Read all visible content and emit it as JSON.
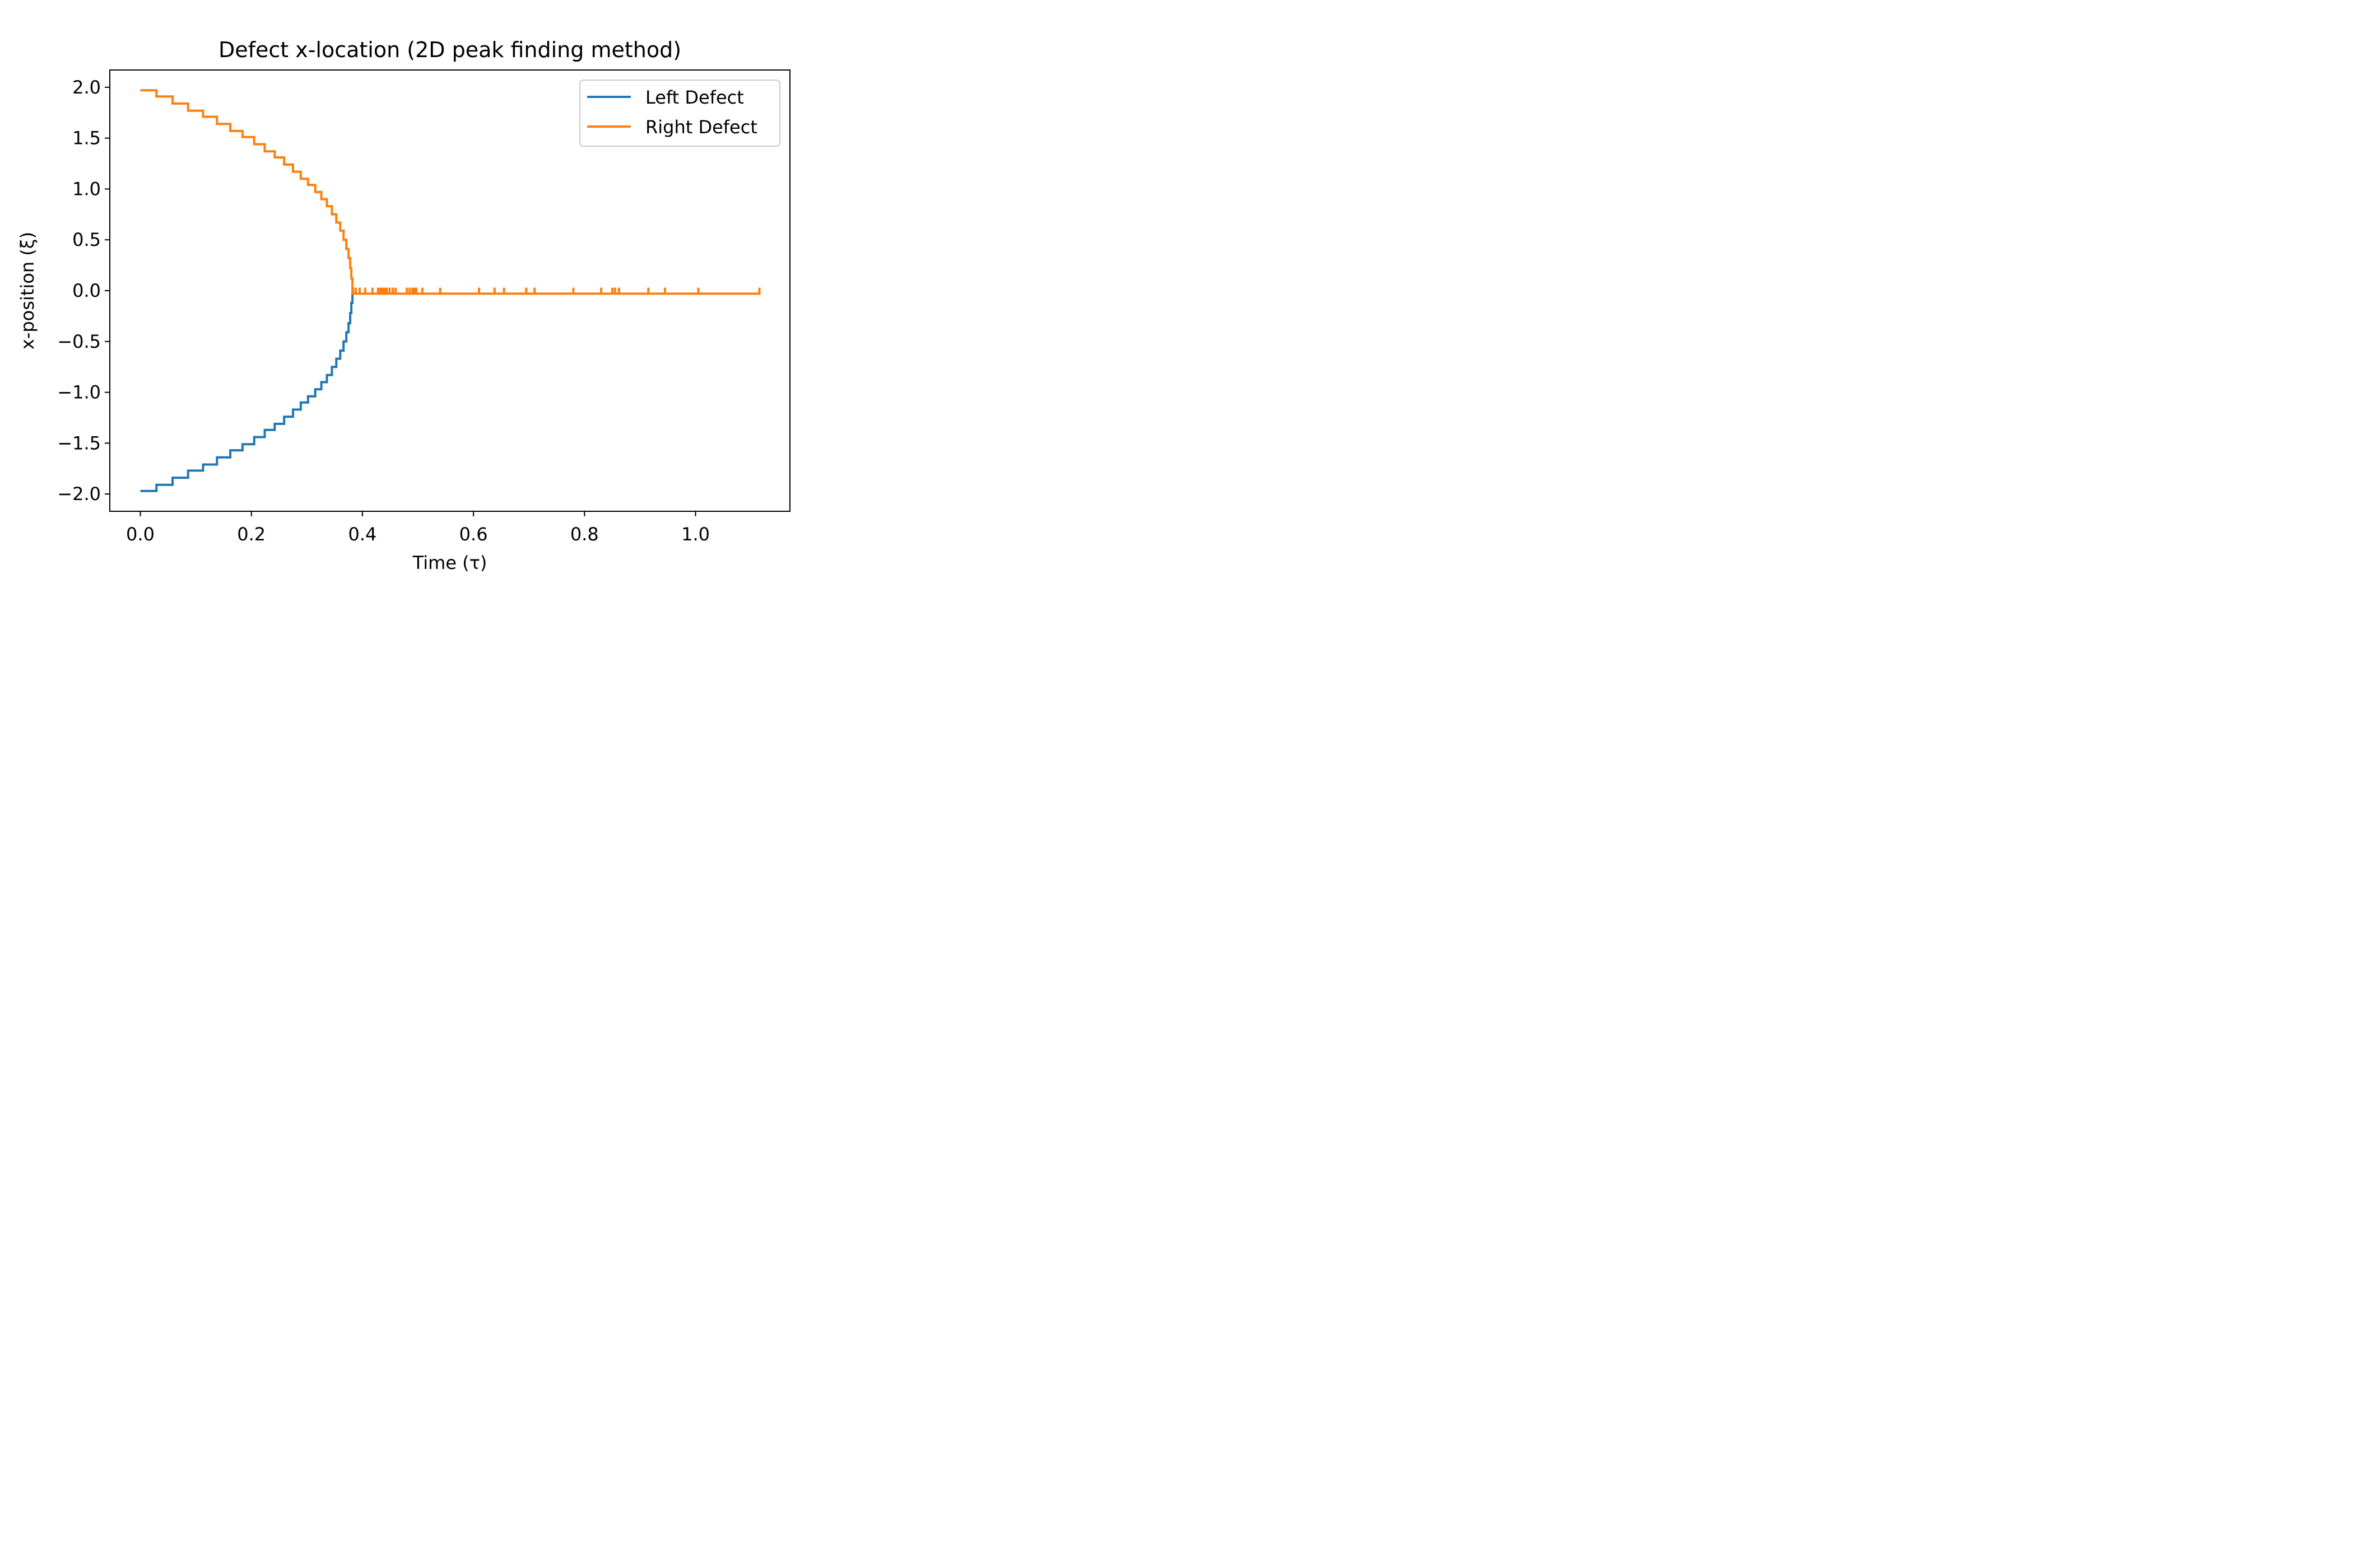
{
  "chart_data": {
    "type": "line",
    "title": "Defect x-location (2D peak finding method)",
    "xlabel": "Time (τ)",
    "ylabel": "x-position (ξ)",
    "xlim": [
      -0.055,
      1.17
    ],
    "ylim": [
      -2.17,
      2.17
    ],
    "x_ticks": [
      0.0,
      0.2,
      0.4,
      0.6,
      0.8,
      1.0
    ],
    "x_tick_labels": [
      "0.0",
      "0.2",
      "0.4",
      "0.6",
      "0.8",
      "1.0"
    ],
    "y_ticks": [
      2.0,
      1.5,
      1.0,
      0.5,
      0.0,
      -0.5,
      -1.0,
      -1.5,
      -2.0
    ],
    "y_tick_labels": [
      "2.0",
      "1.5",
      "1.0",
      "0.5",
      "0.0",
      "−0.5",
      "−1.0",
      "−1.5",
      "−2.0"
    ],
    "grid": false,
    "legend_position": "top-right",
    "series": [
      {
        "name": "Left Defect",
        "color": "#1f77b4",
        "step": "post",
        "x": [
          0.0,
          0.029,
          0.058,
          0.086,
          0.113,
          0.138,
          0.162,
          0.184,
          0.205,
          0.224,
          0.242,
          0.259,
          0.275,
          0.289,
          0.302,
          0.315,
          0.326,
          0.336,
          0.345,
          0.353,
          0.36,
          0.366,
          0.371,
          0.375,
          0.378,
          0.38,
          0.382
        ],
        "y": [
          -1.97,
          -1.91,
          -1.84,
          -1.77,
          -1.71,
          -1.64,
          -1.57,
          -1.51,
          -1.44,
          -1.37,
          -1.31,
          -1.24,
          -1.17,
          -1.1,
          -1.04,
          -0.97,
          -0.9,
          -0.83,
          -0.75,
          -0.67,
          -0.59,
          -0.5,
          -0.41,
          -0.32,
          -0.22,
          -0.12,
          -0.03
        ]
      },
      {
        "name": "Right Defect",
        "color": "#ff7f0e",
        "step": "post",
        "x": [
          0.0,
          0.029,
          0.058,
          0.086,
          0.113,
          0.138,
          0.162,
          0.184,
          0.205,
          0.224,
          0.242,
          0.259,
          0.275,
          0.289,
          0.302,
          0.315,
          0.326,
          0.336,
          0.345,
          0.353,
          0.36,
          0.366,
          0.371,
          0.375,
          0.378,
          0.38,
          0.382
        ],
        "y": [
          1.97,
          1.91,
          1.84,
          1.77,
          1.71,
          1.64,
          1.57,
          1.51,
          1.44,
          1.37,
          1.31,
          1.24,
          1.17,
          1.1,
          1.04,
          0.97,
          0.9,
          0.83,
          0.75,
          0.67,
          0.59,
          0.5,
          0.41,
          0.32,
          0.22,
          0.12,
          0.03
        ],
        "x_end": 1.115,
        "baseline": -0.03,
        "spike_top": 0.03,
        "spikes": [
          0.383,
          0.388,
          0.395,
          0.405,
          0.418,
          0.428,
          0.432,
          0.436,
          0.44,
          0.444,
          0.449,
          0.455,
          0.46,
          0.48,
          0.485,
          0.49,
          0.494,
          0.497,
          0.508,
          0.54,
          0.61,
          0.638,
          0.655,
          0.695,
          0.71,
          0.78,
          0.83,
          0.85,
          0.855,
          0.862,
          0.915,
          0.945,
          1.005,
          1.115
        ]
      }
    ]
  }
}
